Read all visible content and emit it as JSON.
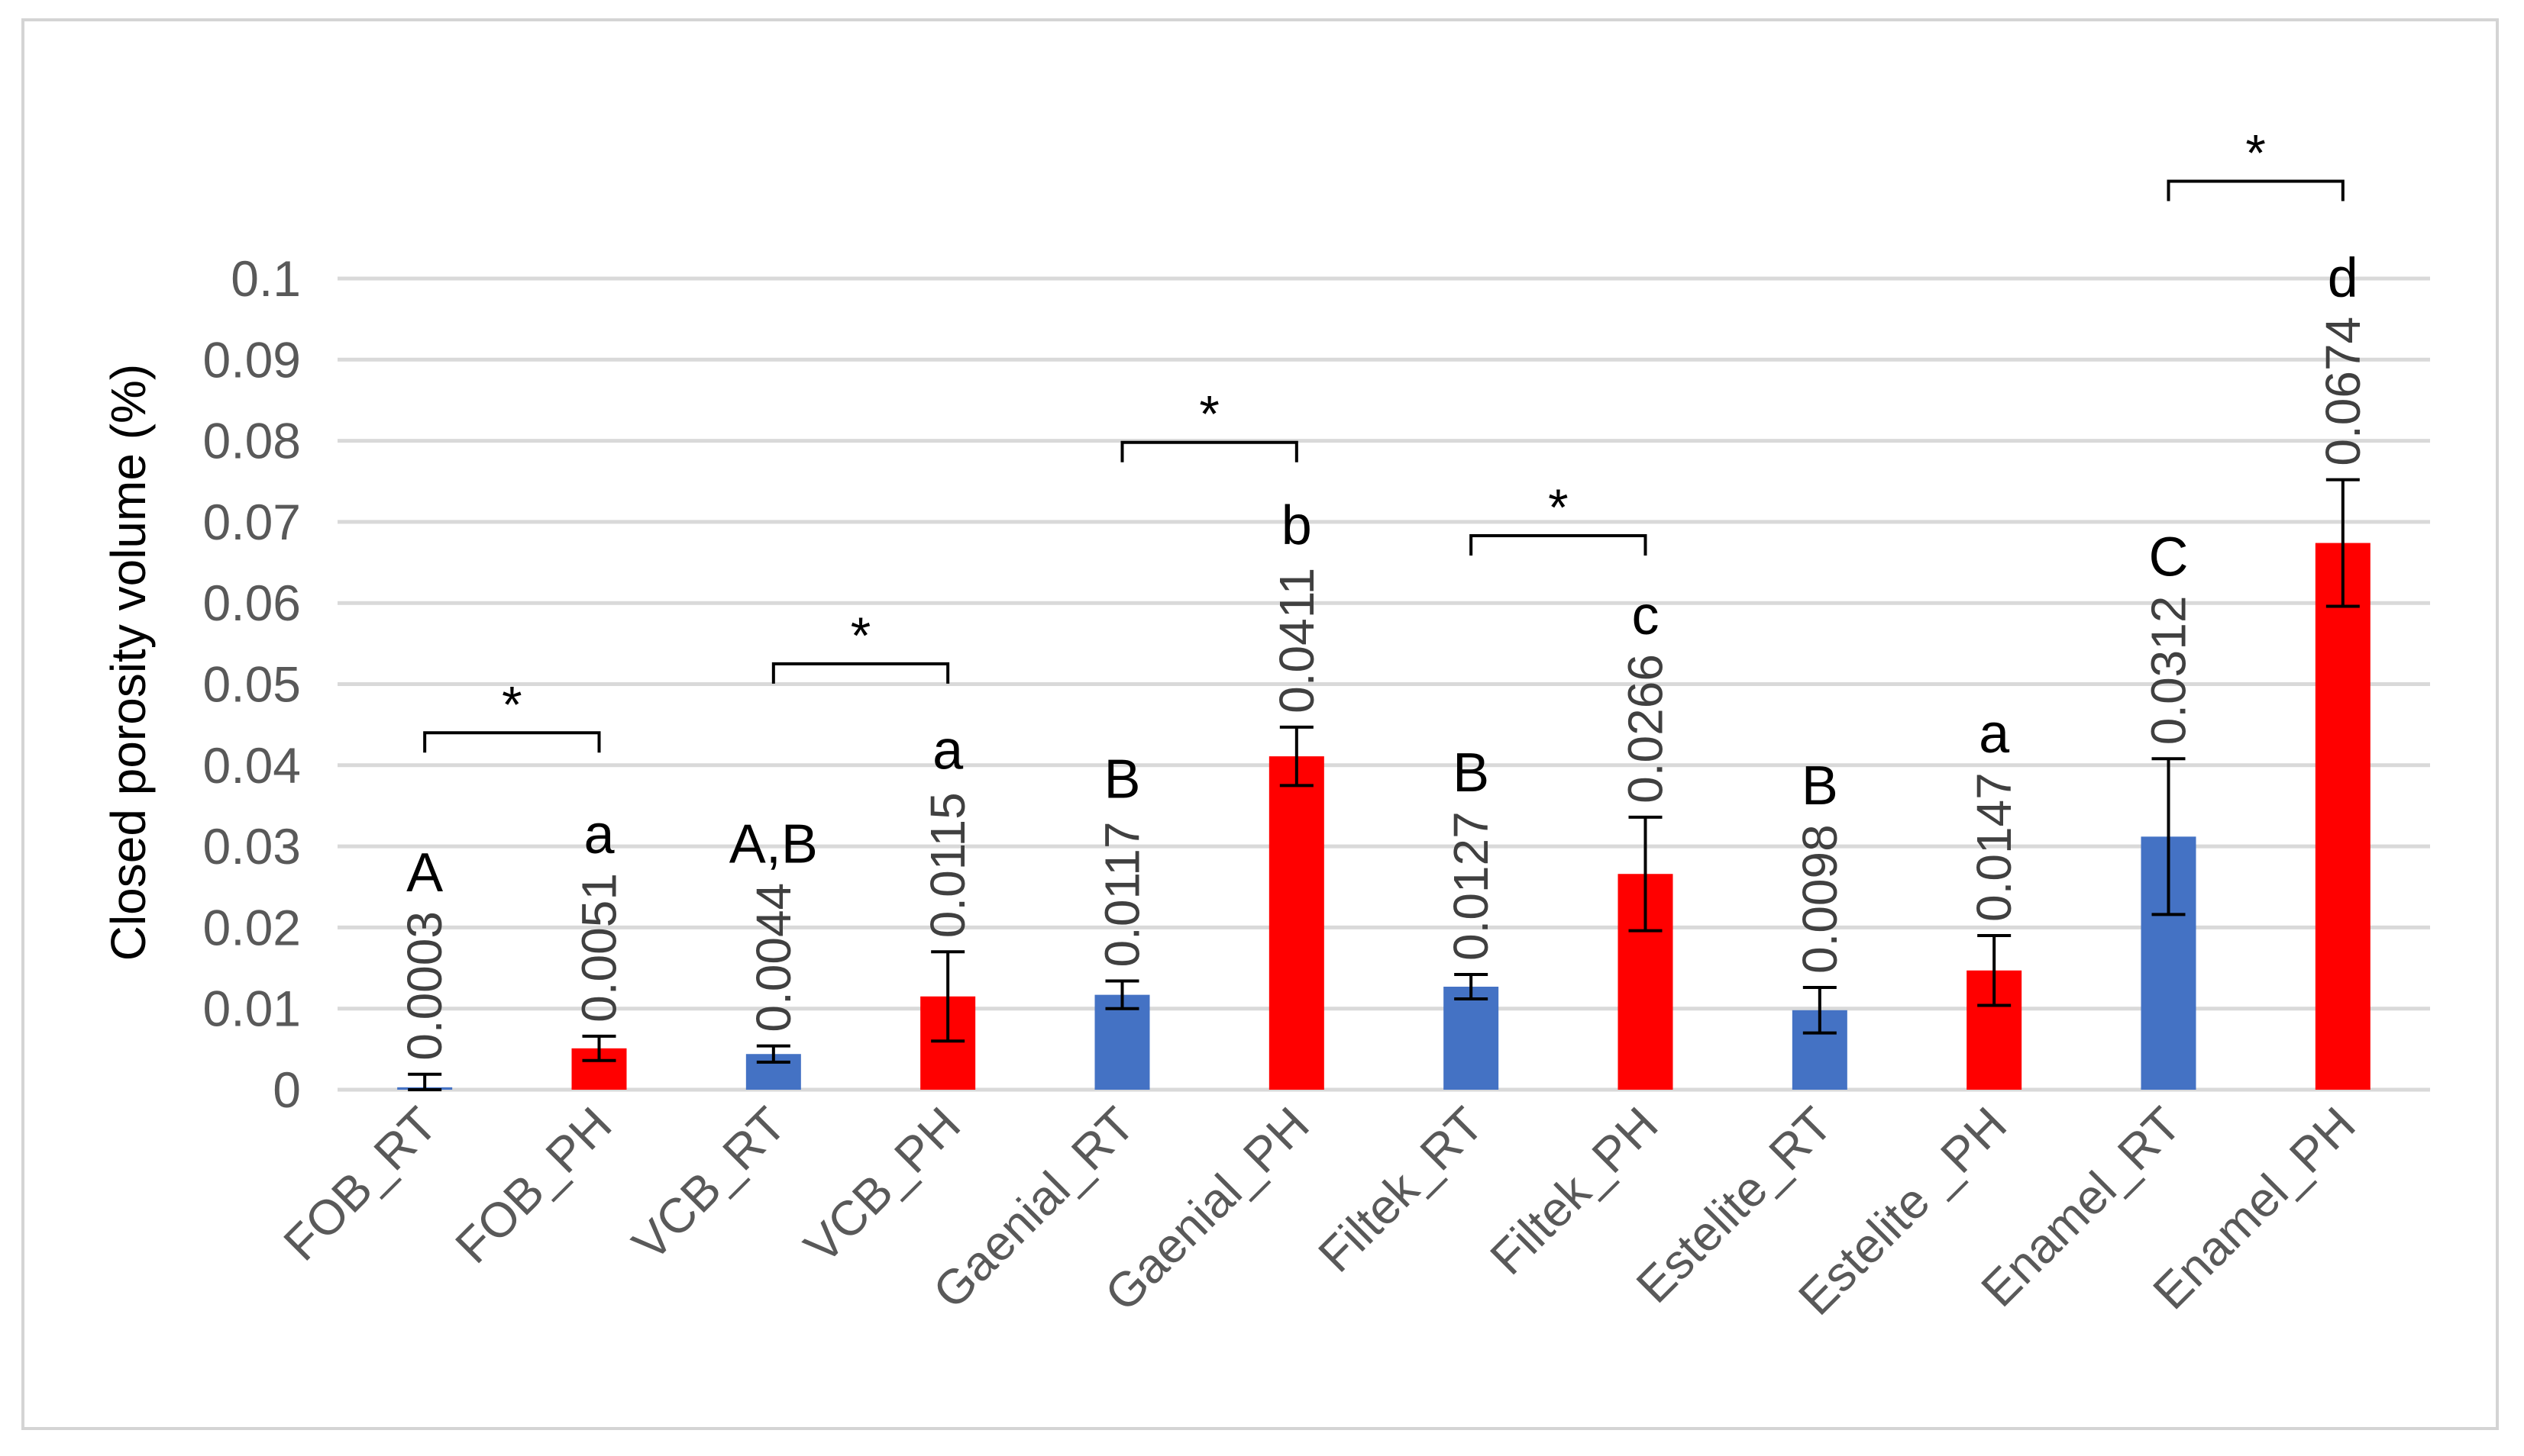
{
  "chart_data": {
    "type": "bar",
    "title": "",
    "xlabel": "",
    "ylabel": "Closed porosity volume (%)",
    "ylim": [
      0,
      0.1
    ],
    "ytick_values": [
      0,
      0.01,
      0.02,
      0.03,
      0.04,
      0.05,
      0.06,
      0.07,
      0.08,
      0.09,
      0.1
    ],
    "ytick_labels": [
      "0",
      "0.01",
      "0.02",
      "0.03",
      "0.04",
      "0.05",
      "0.06",
      "0.07",
      "0.08",
      "0.09",
      "0.1"
    ],
    "grid": true,
    "colors": {
      "RT": "#4472c4",
      "PH": "#ff0000"
    },
    "categories": [
      "FOB_RT",
      "FOB_PH",
      "VCB_RT",
      "VCB_PH",
      "Gaenial_RT",
      "Gaenial_PH",
      "Filtek_RT",
      "Filtek_PH",
      "Estelite_RT",
      "Estelite _PH",
      "Enamel_RT",
      "Enamel_PH"
    ],
    "values": [
      0.0003,
      0.0051,
      0.0044,
      0.0115,
      0.0117,
      0.0411,
      0.0127,
      0.0266,
      0.0098,
      0.0147,
      0.0312,
      0.0674
    ],
    "value_labels": [
      "0.0003",
      "0.0051",
      "0.0044",
      "0.0115",
      "0.0117",
      "0.0411",
      "0.0127",
      "0.0266",
      "0.0098",
      "0.0147",
      "0.0312",
      "0.0674"
    ],
    "errors": [
      0.0016,
      0.0015,
      0.001,
      0.0055,
      0.0017,
      0.0036,
      0.0015,
      0.007,
      0.0028,
      0.0043,
      0.0096,
      0.0078
    ],
    "group_letters": [
      "A",
      "a",
      "A,B",
      "a",
      "B",
      "b",
      "B",
      "c",
      "B",
      "a",
      "C",
      "d"
    ],
    "significance": [
      {
        "from": 0,
        "to": 1,
        "level": 0.044,
        "label": "*"
      },
      {
        "from": 2,
        "to": 3,
        "level": 0.0525,
        "label": "*"
      },
      {
        "from": 4,
        "to": 5,
        "level": 0.0798,
        "label": "*"
      },
      {
        "from": 6,
        "to": 7,
        "level": 0.0683,
        "label": "*"
      },
      {
        "from": 10,
        "to": 11,
        "level": 0.112,
        "label": "*"
      }
    ]
  }
}
